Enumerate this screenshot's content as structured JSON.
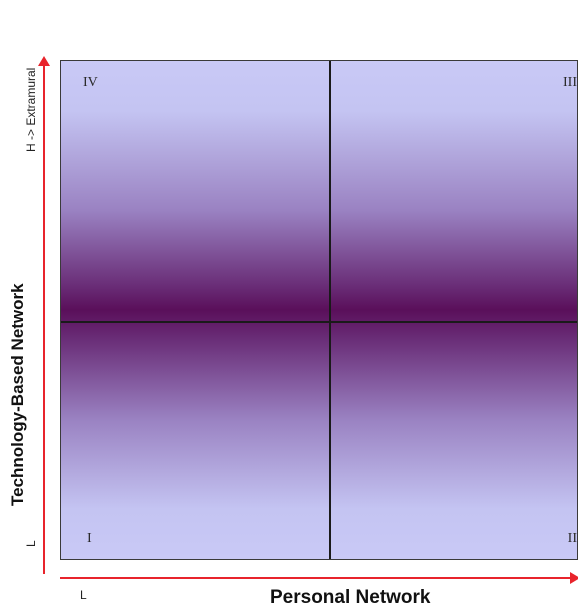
{
  "diagram": {
    "quadrants": {
      "top_left": "IV",
      "top_right": "III",
      "bottom_left": "I",
      "bottom_right": "II"
    },
    "y_axis": {
      "label": "Technology-Based Network",
      "high": "H -> Extramural",
      "low": "L"
    },
    "x_axis": {
      "label": "Personal Network",
      "low": "L"
    },
    "colors": {
      "axis": "#e8242c",
      "light": "#c9c9f6",
      "dark": "#5a0f5a"
    }
  }
}
